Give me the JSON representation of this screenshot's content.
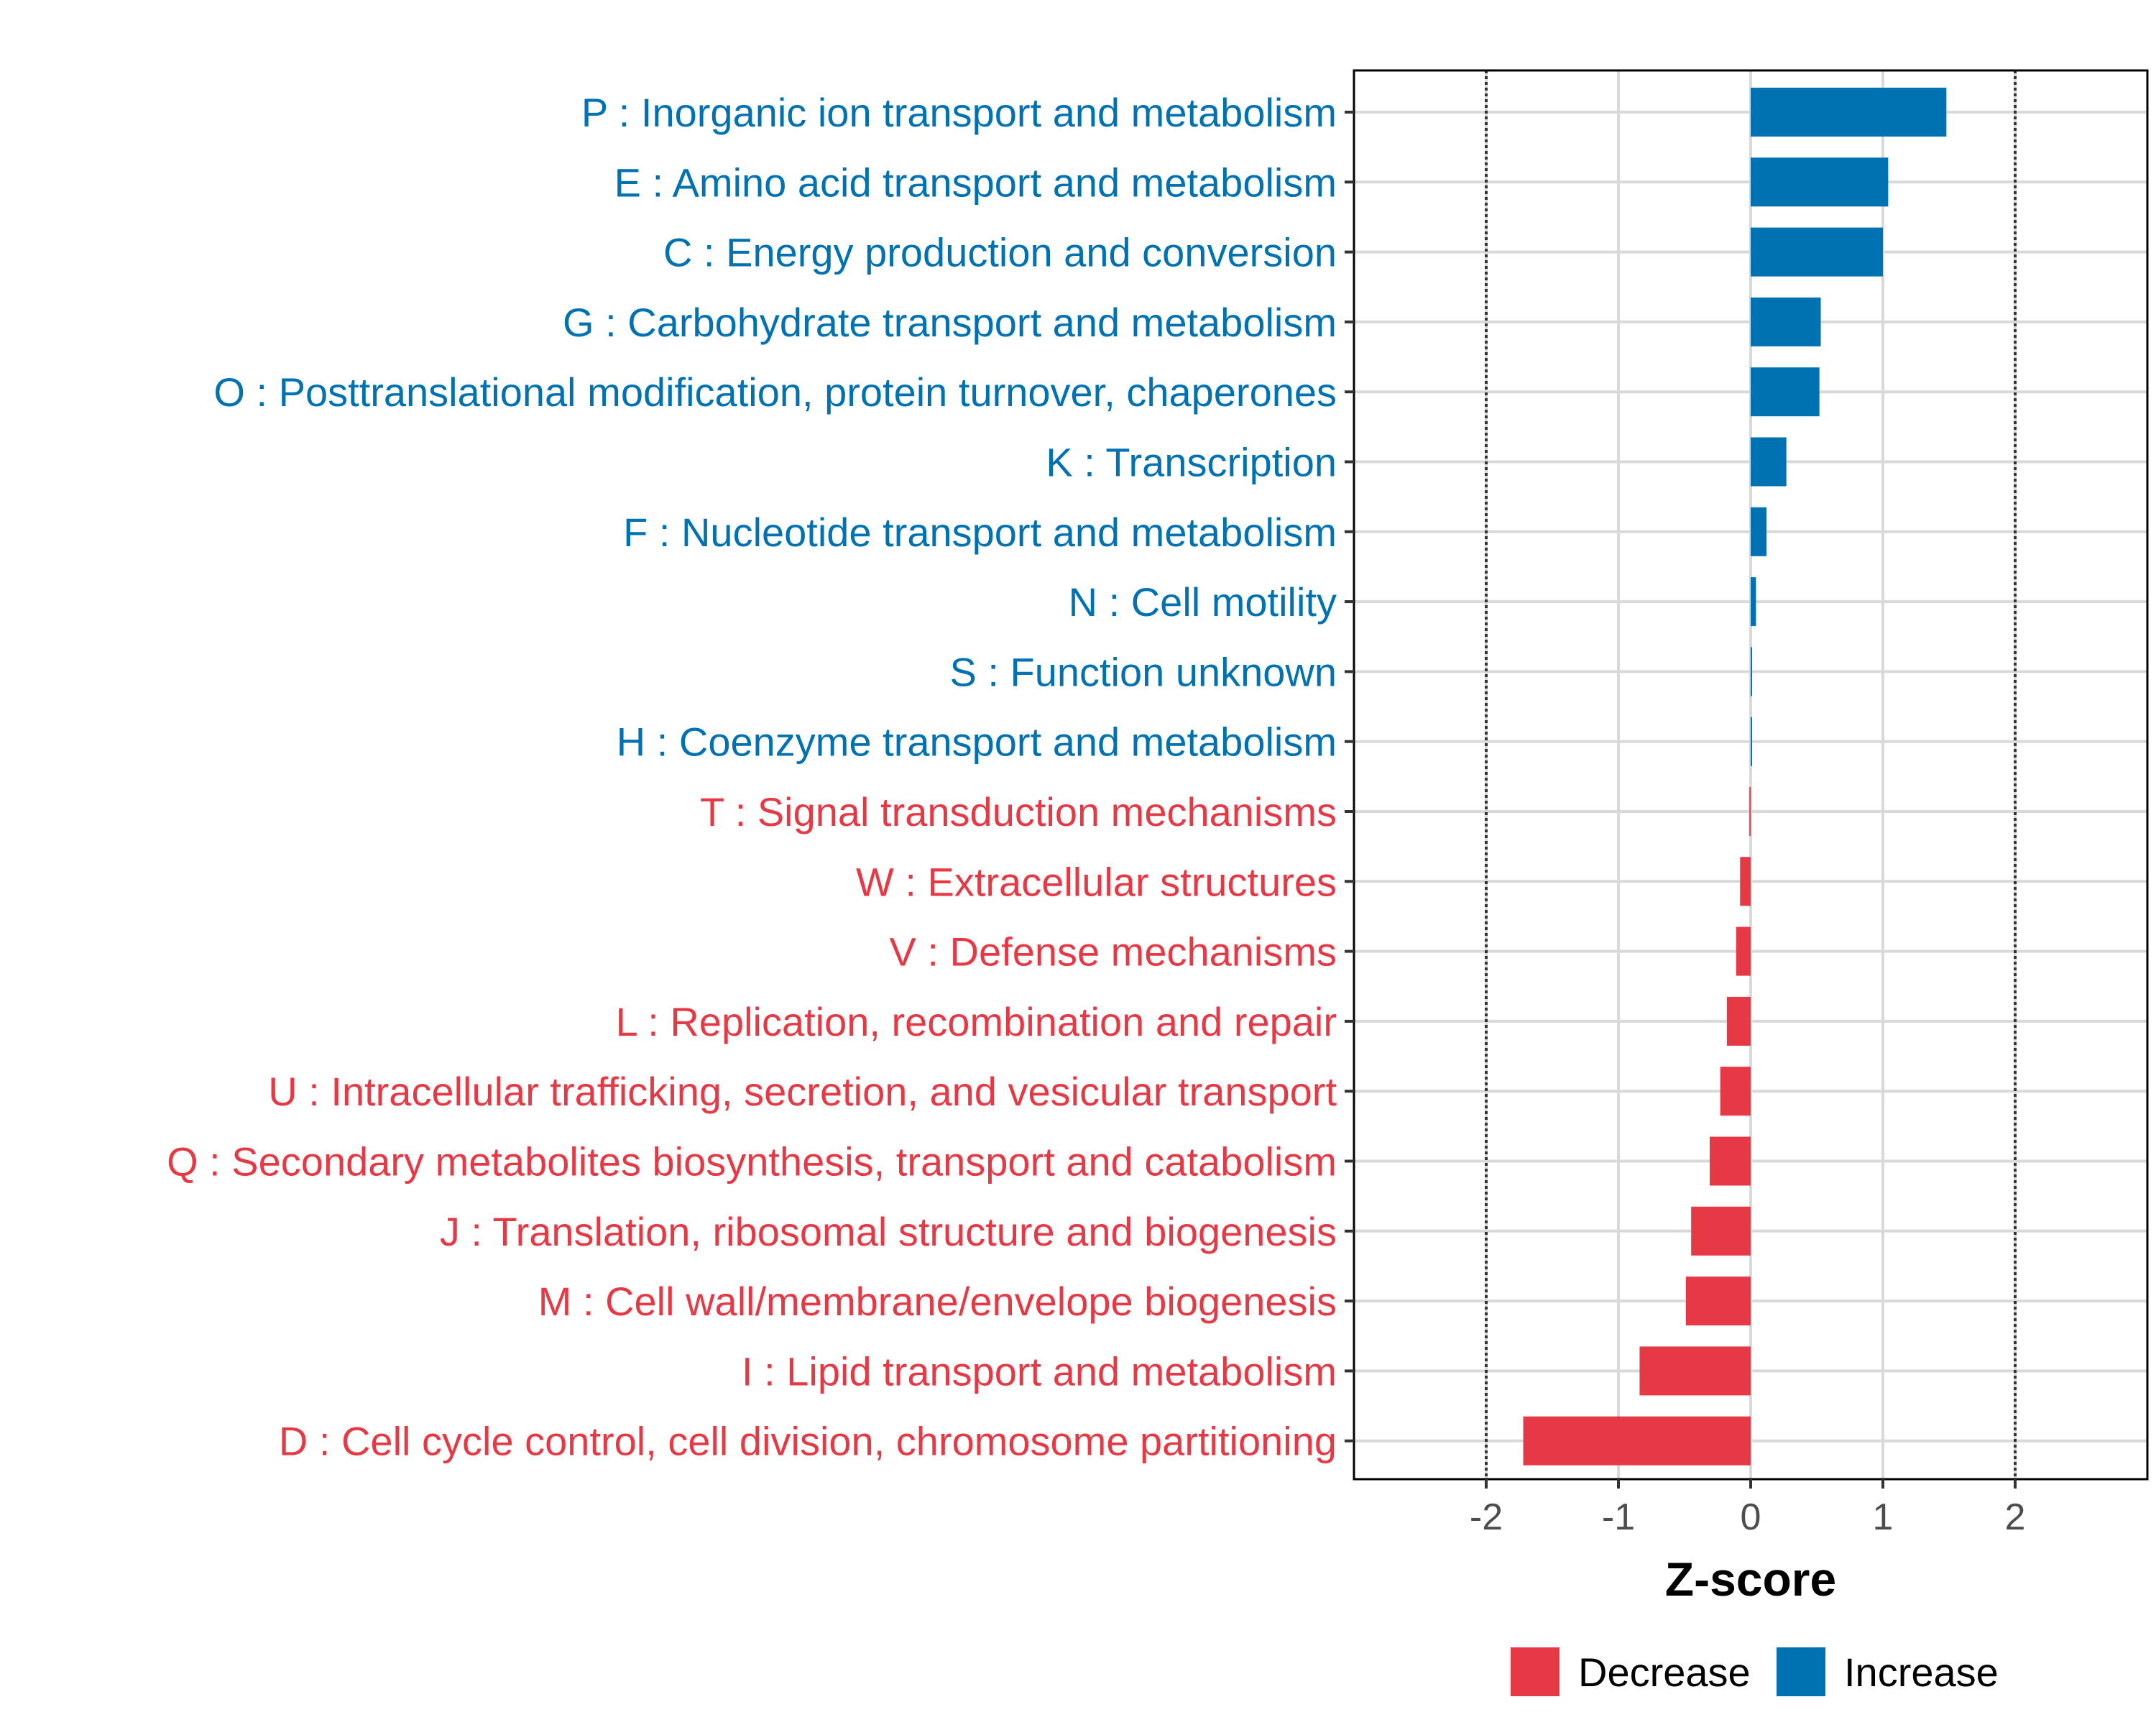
{
  "chart_data": {
    "type": "bar",
    "orientation": "horizontal",
    "title": "",
    "xlabel": "Z-score",
    "ylabel": "",
    "xlim": [
      -3.0,
      3.0
    ],
    "xticks": [
      -2,
      -1,
      0,
      1,
      2
    ],
    "tick_labels": [
      "-2",
      "-1",
      "0",
      "1",
      "2"
    ],
    "reference_lines": [
      -2,
      2
    ],
    "grid": true,
    "colors": {
      "Increase": "#0072b2",
      "Decrease": "#e63946"
    },
    "categories": [
      "P : Inorganic ion transport and metabolism",
      "E : Amino acid transport and metabolism",
      "C : Energy production and conversion",
      "G : Carbohydrate transport and metabolism",
      "O : Posttranslational modification, protein turnover, chaperones",
      "K : Transcription",
      "F : Nucleotide transport and metabolism",
      "N : Cell motility",
      "S : Function unknown",
      "H : Coenzyme transport and metabolism",
      "T : Signal transduction mechanisms",
      "W : Extracellular structures",
      "V : Defense mechanisms",
      "L : Replication, recombination and repair",
      "U : Intracellular trafficking, secretion, and vesicular transport",
      "Q : Secondary metabolites biosynthesis, transport and catabolism",
      "J : Translation, ribosomal structure and biogenesis",
      "M : Cell wall/membrane/envelope biogenesis",
      "I : Lipid transport and metabolism",
      "D : Cell cycle control, cell division, chromosome partitioning"
    ],
    "values": [
      1.48,
      1.04,
      1.0,
      0.53,
      0.52,
      0.27,
      0.12,
      0.04,
      0.01,
      0.01,
      -0.01,
      -0.08,
      -0.11,
      -0.18,
      -0.23,
      -0.31,
      -0.45,
      -0.49,
      -0.84,
      -1.72
    ],
    "groups": [
      "Increase",
      "Increase",
      "Increase",
      "Increase",
      "Increase",
      "Increase",
      "Increase",
      "Increase",
      "Increase",
      "Increase",
      "Decrease",
      "Decrease",
      "Decrease",
      "Decrease",
      "Decrease",
      "Decrease",
      "Decrease",
      "Decrease",
      "Decrease",
      "Decrease"
    ],
    "legend": {
      "position": "bottom",
      "entries": [
        {
          "label": "Decrease",
          "color": "#e63946"
        },
        {
          "label": "Increase",
          "color": "#0072b2"
        }
      ]
    }
  }
}
